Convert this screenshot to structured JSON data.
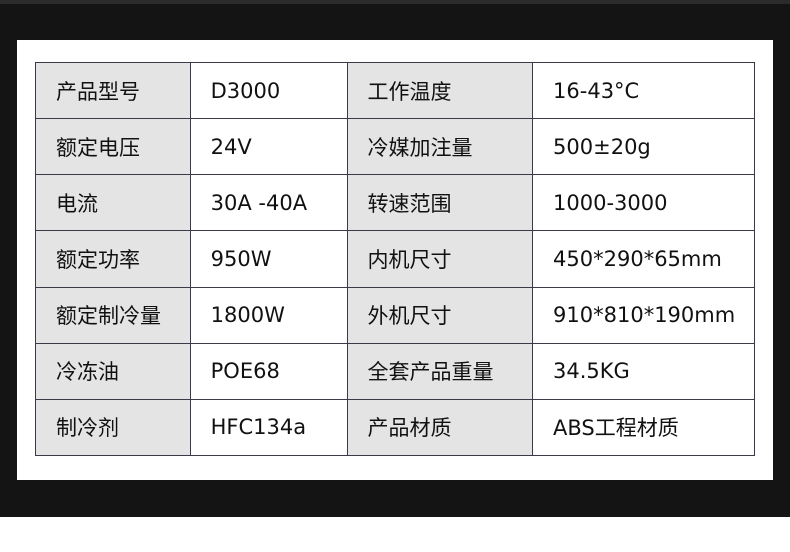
{
  "specs": [
    {
      "label1": "产品型号",
      "value1": "D3000",
      "label2": "工作温度",
      "value2": "16-43°C"
    },
    {
      "label1": "额定电压",
      "value1": "24V",
      "label2": "冷媒加注量",
      "value2": "500±20g"
    },
    {
      "label1": "电流",
      "value1": "30A -40A",
      "label2": "转速范围",
      "value2": "1000-3000"
    },
    {
      "label1": "额定功率",
      "value1": "950W",
      "label2": "内机尺寸",
      "value2": "450*290*65mm"
    },
    {
      "label1": "额定制冷量",
      "value1": "1800W",
      "label2": "外机尺寸",
      "value2": "910*810*190mm"
    },
    {
      "label1": "冷冻油",
      "value1": "POE68",
      "label2": "全套产品重量",
      "value2": "34.5KG"
    },
    {
      "label1": "制冷剂",
      "value1": "HFC134a",
      "label2": "产品材质",
      "value2": "ABS工程材质"
    }
  ],
  "colors": {
    "background": "#141414",
    "label_cell": "#e4e4e4",
    "border": "#3a3a4a"
  }
}
